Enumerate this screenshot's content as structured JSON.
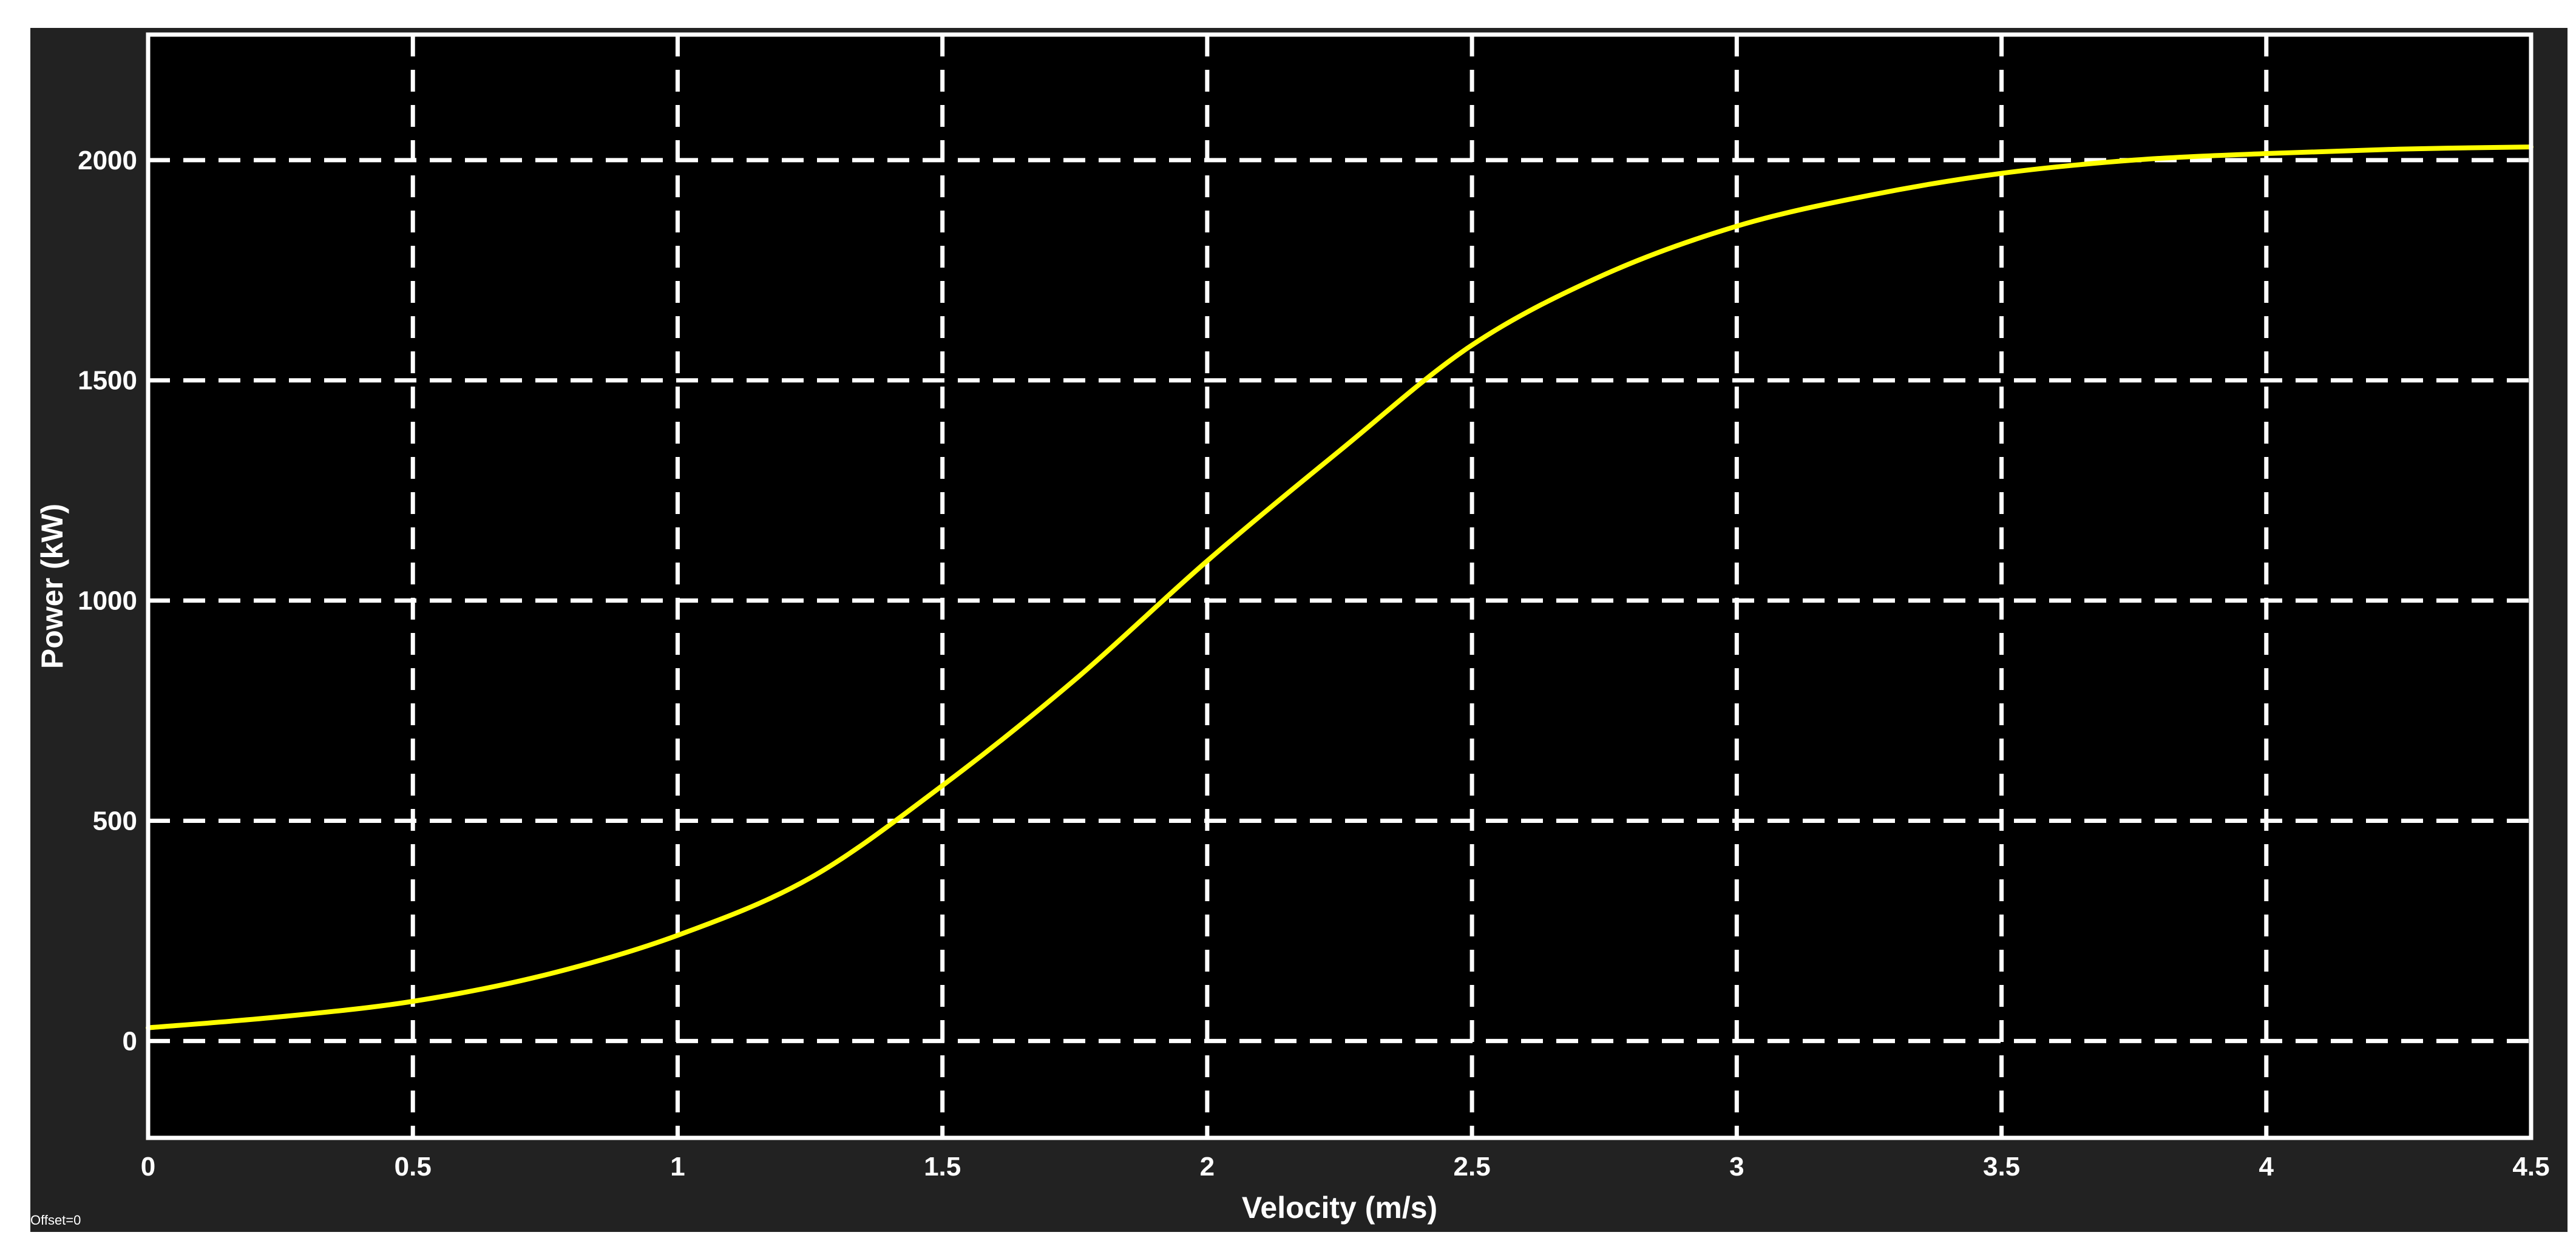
{
  "chart_data": {
    "type": "line",
    "title": "",
    "xlabel": "Velocity (m/s)",
    "ylabel": "Power (kW)",
    "xlim": [
      0,
      4.5
    ],
    "ylim": [
      -220,
      2285
    ],
    "xticks": [
      0,
      0.5,
      1,
      1.5,
      2,
      2.5,
      3,
      3.5,
      4,
      4.5
    ],
    "xtick_labels": [
      "0",
      "0.5",
      "1",
      "1.5",
      "2",
      "2.5",
      "3",
      "3.5",
      "4",
      "4.5"
    ],
    "yticks": [
      0,
      500,
      1000,
      1500,
      2000
    ],
    "ytick_labels": [
      "0",
      "500",
      "1000",
      "1500",
      "2000"
    ],
    "grid": true,
    "legend": "none",
    "series": [
      {
        "color": "#ffff00",
        "x": [
          0,
          0.25,
          0.5,
          0.75,
          1,
          1.25,
          1.5,
          1.75,
          2,
          2.25,
          2.5,
          2.75,
          3,
          3.25,
          3.5,
          3.75,
          4,
          4.25,
          4.5
        ],
        "y": [
          30,
          55,
          90,
          150,
          240,
          370,
          580,
          820,
          1090,
          1340,
          1580,
          1740,
          1850,
          1920,
          1970,
          2000,
          2015,
          2025,
          2030
        ]
      }
    ]
  },
  "footer": {
    "offset_text": "Offset=0"
  },
  "colors": {
    "figure_background": "#222222",
    "axes_background": "#000000",
    "grid": "#ffffff",
    "text": "#ffffff",
    "line": "#ffff00"
  }
}
